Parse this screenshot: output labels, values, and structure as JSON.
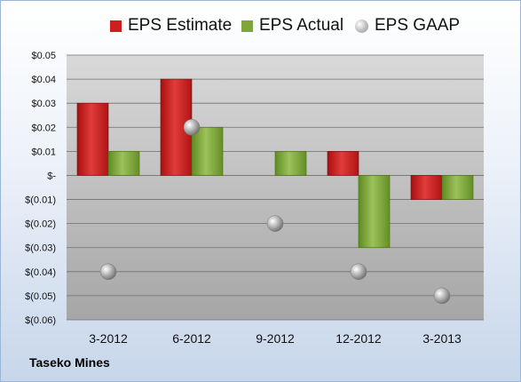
{
  "company": "Taseko Mines",
  "colors": {
    "estimate": "#cc1f1f",
    "actual": "#7ea63a",
    "gaap": "#a0a0a0"
  },
  "chart_data": {
    "type": "bar",
    "categories": [
      "3-2012",
      "6-2012",
      "9-2012",
      "12-2012",
      "3-2013"
    ],
    "series": [
      {
        "name": "EPS Estimate",
        "kind": "bar",
        "values": [
          0.03,
          0.04,
          null,
          0.01,
          -0.01
        ]
      },
      {
        "name": "EPS Actual",
        "kind": "bar",
        "values": [
          0.01,
          0.02,
          0.01,
          -0.03,
          -0.01
        ]
      },
      {
        "name": "EPS GAAP",
        "kind": "marker",
        "values": [
          -0.04,
          0.02,
          -0.02,
          -0.04,
          -0.05
        ]
      }
    ],
    "yticks": [
      0.05,
      0.04,
      0.03,
      0.02,
      0.01,
      0,
      -0.01,
      -0.02,
      -0.03,
      -0.04,
      -0.05,
      -0.06
    ],
    "ytick_labels": [
      "$0.05",
      "$0.04",
      "$0.03",
      "$0.02",
      "$0.01",
      "$-",
      "$(0.01)",
      "$(0.02)",
      "$(0.03)",
      "$(0.04)",
      "$(0.05)",
      "$(0.06)"
    ],
    "ylim": [
      -0.06,
      0.05
    ],
    "grid": true,
    "legend_position": "top"
  }
}
